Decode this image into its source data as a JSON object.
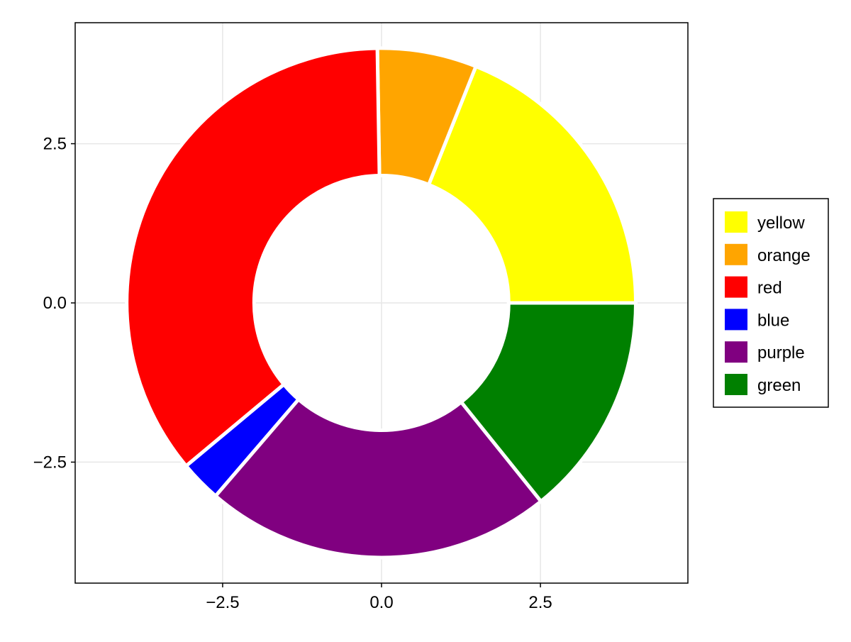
{
  "chart_data": {
    "type": "pie",
    "donut": true,
    "values": [
      36,
      12,
      68,
      5,
      42,
      27
    ],
    "labels": [
      "yellow",
      "orange",
      "red",
      "blue",
      "purple",
      "green"
    ],
    "colors": [
      "#ffff00",
      "#ffa500",
      "#ff0000",
      "#0000ff",
      "#800080",
      "#008000"
    ],
    "radius": 4,
    "inner_radius": 2,
    "start_angle_deg": 0,
    "direction": "counterclockwise",
    "stroke_color": "#ffffff",
    "xlim": [
      -4.82,
      4.82
    ],
    "ylim": [
      -4.4,
      4.4
    ],
    "xticks": [
      -2.5,
      0.0,
      2.5
    ],
    "yticks": [
      -2.5,
      0.0,
      2.5
    ],
    "xtick_labels": [
      "−2.5",
      "0.0",
      "2.5"
    ],
    "ytick_labels": [
      "−2.5",
      "0.0",
      "2.5"
    ],
    "grid": true,
    "legend": {
      "placement": "right",
      "entries": [
        "yellow",
        "orange",
        "red",
        "blue",
        "purple",
        "green"
      ]
    }
  }
}
